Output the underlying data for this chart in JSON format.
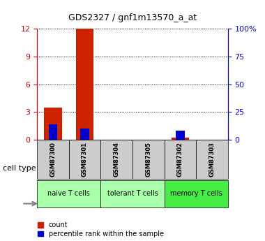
{
  "title": "GDS2327 / gnf1m13570_a_at",
  "samples": [
    "GSM87300",
    "GSM87301",
    "GSM87304",
    "GSM87305",
    "GSM87302",
    "GSM87303"
  ],
  "count_values": [
    3.5,
    12.0,
    0.0,
    0.0,
    0.2,
    0.0
  ],
  "percentile_values": [
    14.0,
    10.0,
    0.0,
    0.0,
    8.0,
    0.0
  ],
  "left_ylim": [
    0,
    12
  ],
  "left_yticks": [
    0,
    3,
    6,
    9,
    12
  ],
  "right_ylim": [
    0,
    100
  ],
  "right_yticks": [
    0,
    25,
    50,
    75,
    100
  ],
  "right_yticklabels": [
    "0",
    "25",
    "50",
    "75",
    "100%"
  ],
  "groups": [
    {
      "label": "naive T cells",
      "indices": [
        0,
        1
      ],
      "color": "#aaffaa"
    },
    {
      "label": "tolerant T cells",
      "indices": [
        2,
        3
      ],
      "color": "#aaffaa"
    },
    {
      "label": "memory T cells",
      "indices": [
        4,
        5
      ],
      "color": "#44ee44"
    }
  ],
  "bar_width": 0.55,
  "red_color": "#cc2200",
  "blue_color": "#0000cc",
  "bg_color": "#ffffff",
  "sample_box_color": "#cccccc",
  "legend_count_label": "count",
  "legend_pct_label": "percentile rank within the sample",
  "cell_type_label": "cell type",
  "left_axis_color": "#cc0000",
  "right_axis_color": "#0000cc"
}
